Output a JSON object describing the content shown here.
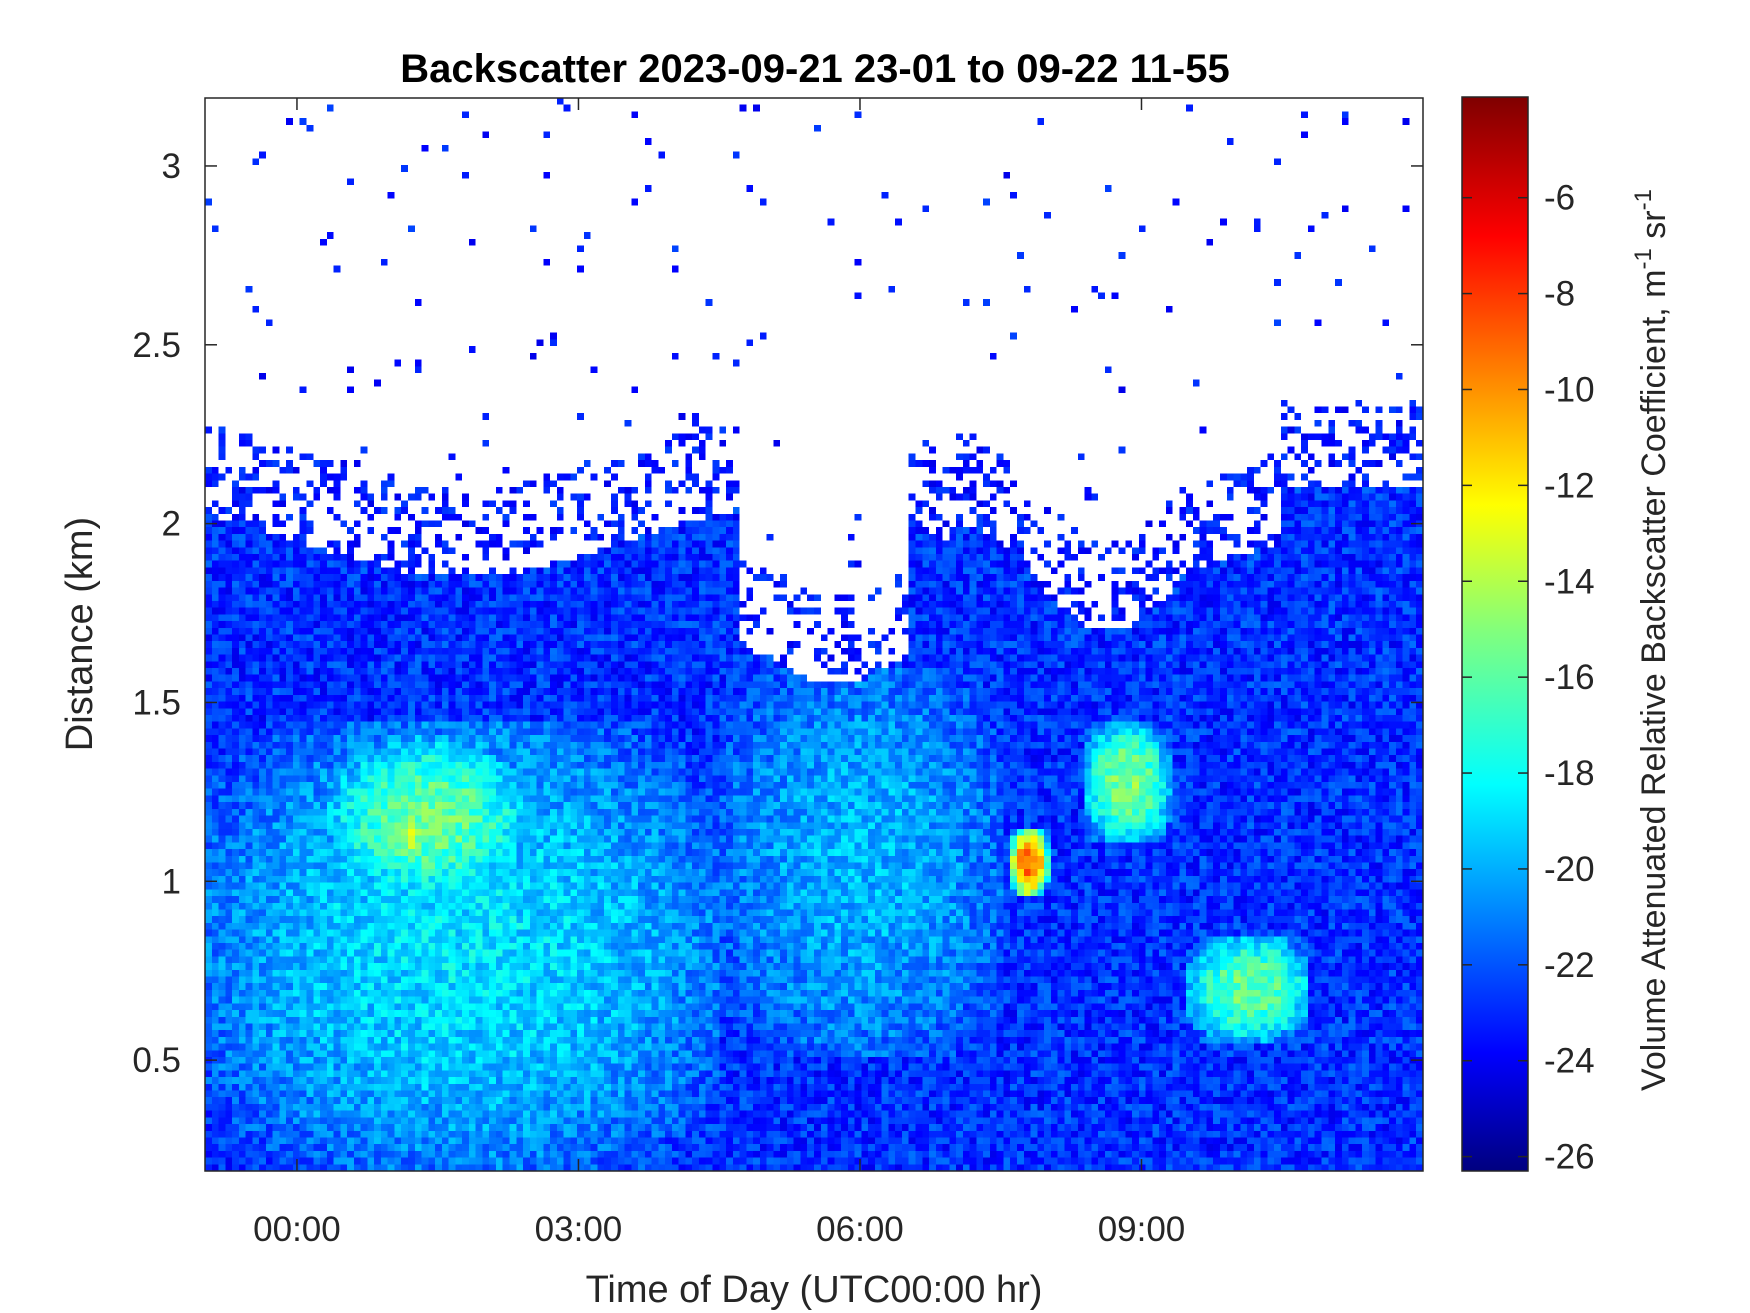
{
  "chart_data": {
    "type": "heatmap",
    "title": "Backscatter 2023-09-21 23-01 to 09-22 11-55",
    "xlabel": "Time of Day (UTC00:00 hr)",
    "ylabel": "Distance (km)",
    "colorbar_label": "Volume Attenuated Relative Backscatter Coefficient, m",
    "colorbar_unit_sup1": "-1",
    "colorbar_unit_sr": " sr",
    "colorbar_unit_sup2": "-1",
    "x_ticks": [
      {
        "value": 0,
        "label": "00:00"
      },
      {
        "value": 3,
        "label": "03:00"
      },
      {
        "value": 6,
        "label": "06:00"
      },
      {
        "value": 9,
        "label": "09:00"
      }
    ],
    "y_ticks": [
      {
        "value": 0.5,
        "label": "0.5"
      },
      {
        "value": 1.0,
        "label": "1"
      },
      {
        "value": 1.5,
        "label": "1.5"
      },
      {
        "value": 2.0,
        "label": "2"
      },
      {
        "value": 2.5,
        "label": "2.5"
      },
      {
        "value": 3.0,
        "label": "3"
      }
    ],
    "colorbar_ticks": [
      {
        "value": -6,
        "label": "-6"
      },
      {
        "value": -8,
        "label": "-8"
      },
      {
        "value": -10,
        "label": "-10"
      },
      {
        "value": -12,
        "label": "-12"
      },
      {
        "value": -14,
        "label": "-14"
      },
      {
        "value": -16,
        "label": "-16"
      },
      {
        "value": -18,
        "label": "-18"
      },
      {
        "value": -20,
        "label": "-20"
      },
      {
        "value": -22,
        "label": "-22"
      },
      {
        "value": -24,
        "label": "-24"
      },
      {
        "value": -26,
        "label": "-26"
      }
    ],
    "xlim": [
      -0.98,
      12.0
    ],
    "ylim": [
      0.19,
      3.19
    ],
    "clim": [
      -26.3,
      -3.9
    ],
    "colormap": "jet",
    "grid": false,
    "features": [
      {
        "t0": -1.0,
        "t1": 4.5,
        "d0": 0.19,
        "d1": 1.45,
        "value": -18.5
      },
      {
        "t0": 0.3,
        "t1": 2.5,
        "d0": 0.95,
        "d1": 1.4,
        "value": -15.5
      },
      {
        "t0": 1.0,
        "t1": 1.4,
        "d0": 1.05,
        "d1": 1.2,
        "value": -13.5
      },
      {
        "t0": 4.5,
        "t1": 7.5,
        "d0": 0.5,
        "d1": 1.6,
        "value": -19.5
      },
      {
        "t0": 7.6,
        "t1": 8.0,
        "d0": 0.95,
        "d1": 1.15,
        "value": -8.5
      },
      {
        "t0": 8.4,
        "t1": 9.3,
        "d0": 1.1,
        "d1": 1.45,
        "value": -15.0
      },
      {
        "t0": 9.5,
        "t1": 10.8,
        "d0": 0.55,
        "d1": 0.85,
        "value": -15.5
      },
      {
        "t0": -1.0,
        "t1": 12.0,
        "d0": 1.5,
        "d1": 2.1,
        "value": -23.5
      },
      {
        "t0": -1.0,
        "t1": 12.0,
        "d0": 0.19,
        "d1": 0.4,
        "value": -24.5
      }
    ]
  }
}
